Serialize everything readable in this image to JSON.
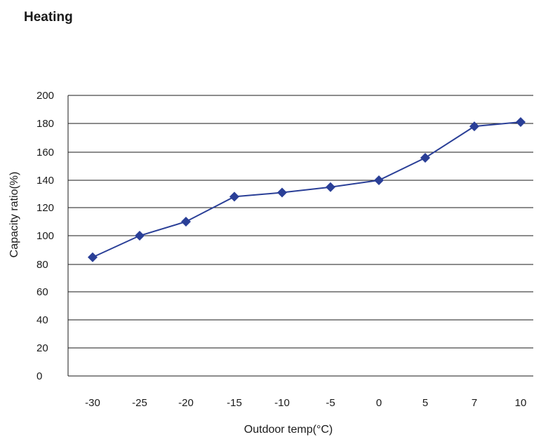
{
  "chart_data": {
    "type": "line",
    "title": "Heating",
    "xlabel": "Outdoor temp(°C)",
    "ylabel": "Capacity ratio(%)",
    "categories": [
      "-30",
      "-25",
      "-20",
      "-15",
      "-10",
      "-5",
      "0",
      "5",
      "7",
      "10"
    ],
    "yticks": [
      "0",
      "20",
      "40",
      "60",
      "80",
      "100",
      "120",
      "140",
      "160",
      "180",
      "200"
    ],
    "series": [
      {
        "values": [
          85,
          100,
          110,
          128,
          131,
          135,
          140,
          156,
          178,
          181
        ],
        "color": "#2a3f97",
        "marker": "diamond"
      }
    ],
    "grid": true,
    "legend": "none"
  }
}
